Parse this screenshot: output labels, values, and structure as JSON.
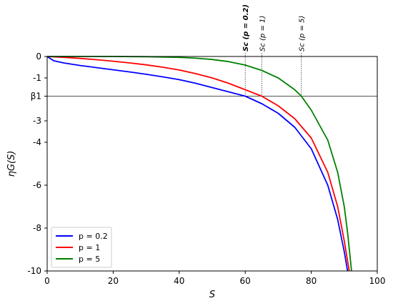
{
  "chart_data": {
    "type": "line",
    "xlabel": "S",
    "ylabel": "ηG(S)",
    "xlim": [
      0,
      100
    ],
    "ylim": [
      -10,
      0
    ],
    "xticks": [
      0,
      20,
      40,
      60,
      80,
      100
    ],
    "xtick_labels": [
      "0",
      "20",
      "40",
      "60",
      "80",
      "100"
    ],
    "yticks": [
      0,
      -1,
      -1.85,
      -3,
      -4,
      -6,
      -8,
      -10
    ],
    "ytick_labels": [
      "0",
      "-1",
      "β1",
      "-3",
      "-4",
      "-6",
      "-8",
      "-10"
    ],
    "hline": {
      "y": -1.85,
      "label": "β1"
    },
    "vlines": [
      {
        "x": 60,
        "label": "Sc (p = 0.2)"
      },
      {
        "x": 65,
        "label": "Sc (p = 1)"
      },
      {
        "x": 77,
        "label": "Sc (p = 5)"
      }
    ],
    "legend": {
      "position": "bottom-left"
    },
    "grid": false,
    "series": [
      {
        "name": "p = 0.2",
        "color": "#0000ff",
        "x": [
          0,
          2,
          5,
          10,
          15,
          20,
          25,
          30,
          35,
          40,
          45,
          50,
          55,
          60,
          65,
          70,
          75,
          80,
          85,
          88,
          90,
          91
        ],
        "y": [
          0,
          -0.2,
          -0.3,
          -0.42,
          -0.52,
          -0.62,
          -0.72,
          -0.83,
          -0.95,
          -1.08,
          -1.25,
          -1.45,
          -1.65,
          -1.85,
          -2.2,
          -2.65,
          -3.3,
          -4.3,
          -6.0,
          -7.6,
          -9.1,
          -10.0
        ]
      },
      {
        "name": "p = 1",
        "color": "#ff0000",
        "x": [
          0,
          5,
          10,
          15,
          20,
          25,
          30,
          35,
          40,
          45,
          50,
          55,
          60,
          65,
          70,
          75,
          80,
          85,
          88,
          90,
          91.5
        ],
        "y": [
          0,
          -0.04,
          -0.09,
          -0.15,
          -0.22,
          -0.3,
          -0.39,
          -0.5,
          -0.63,
          -0.8,
          -1.0,
          -1.25,
          -1.55,
          -1.85,
          -2.3,
          -2.9,
          -3.8,
          -5.4,
          -7.0,
          -8.6,
          -10.0
        ]
      },
      {
        "name": "p = 5",
        "color": "#008000",
        "x": [
          0,
          10,
          20,
          30,
          40,
          45,
          50,
          55,
          60,
          65,
          70,
          75,
          77,
          80,
          85,
          88,
          90,
          91,
          92.2
        ],
        "y": [
          0,
          0,
          0,
          -0.01,
          -0.04,
          -0.08,
          -0.14,
          -0.24,
          -0.4,
          -0.65,
          -1.0,
          -1.55,
          -1.85,
          -2.5,
          -3.9,
          -5.4,
          -7.0,
          -8.2,
          -10.0
        ]
      }
    ]
  }
}
